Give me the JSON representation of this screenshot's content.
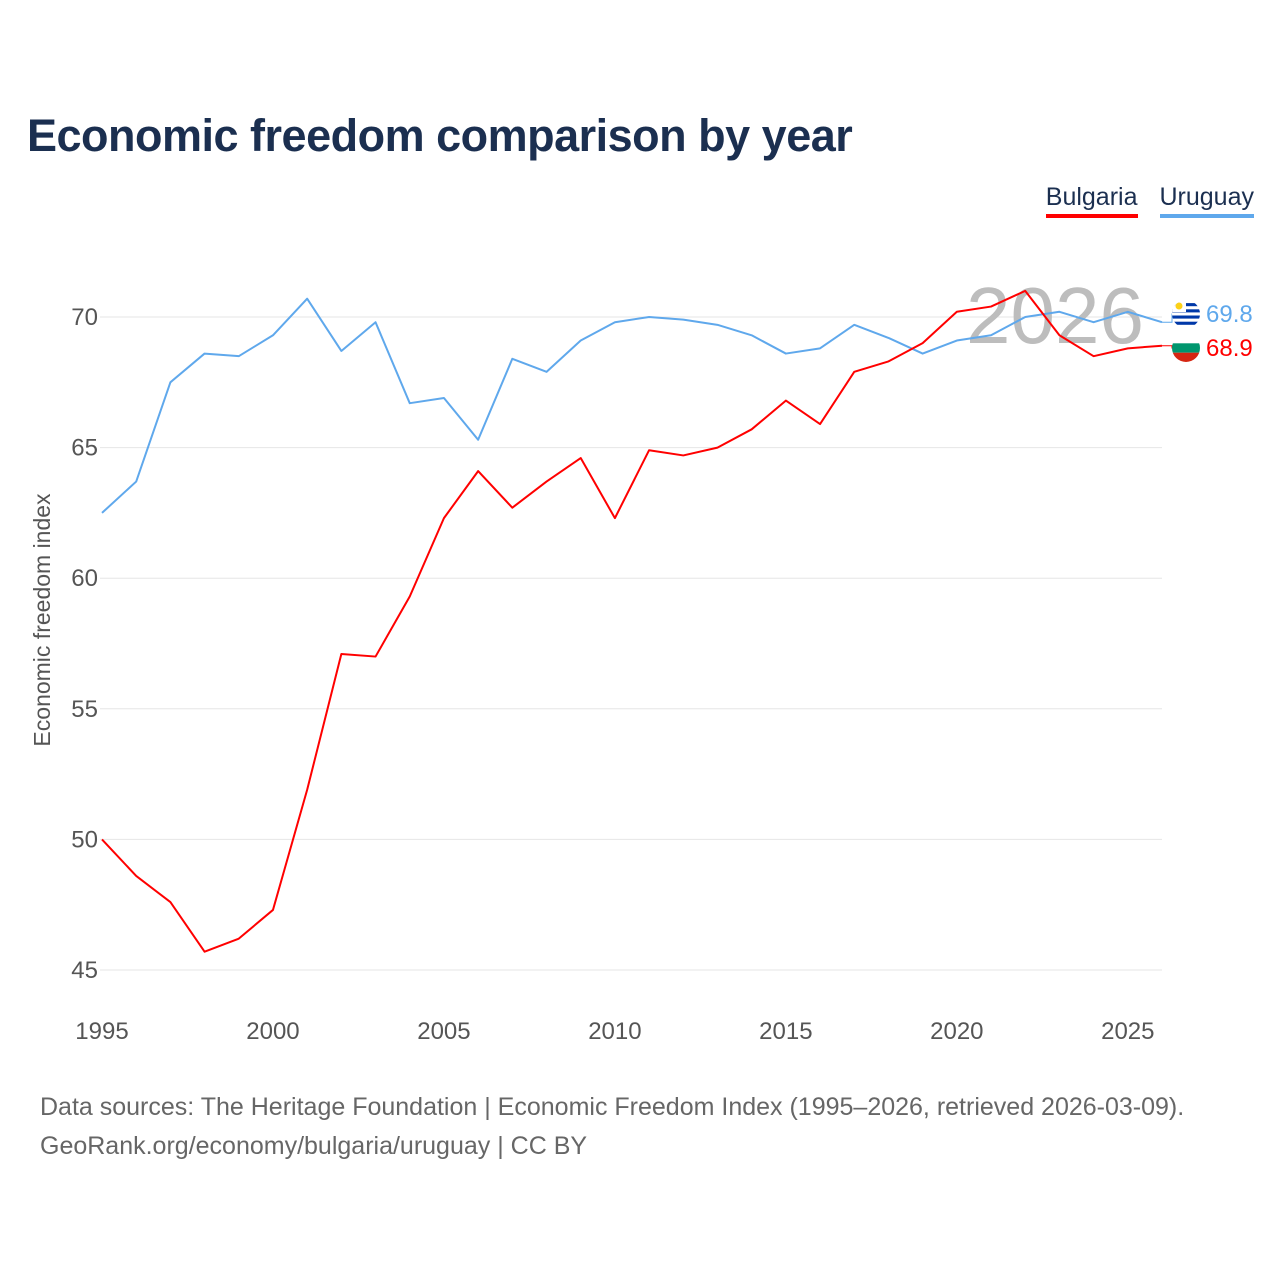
{
  "chart_data": {
    "type": "line",
    "title": "Economic freedom comparison by year",
    "xlabel": "",
    "ylabel": "Economic freedom index",
    "xlim": [
      1995,
      2026
    ],
    "ylim": [
      45,
      72
    ],
    "x_ticks": [
      1995,
      2000,
      2005,
      2010,
      2015,
      2020,
      2025
    ],
    "y_ticks": [
      45,
      50,
      55,
      60,
      65,
      70
    ],
    "grid": true,
    "legend_position": "top-right",
    "watermark_year": "2026",
    "x": [
      1995,
      1996,
      1997,
      1998,
      1999,
      2000,
      2001,
      2002,
      2003,
      2004,
      2005,
      2006,
      2007,
      2008,
      2009,
      2010,
      2011,
      2012,
      2013,
      2014,
      2015,
      2016,
      2017,
      2018,
      2019,
      2020,
      2021,
      2022,
      2023,
      2024,
      2025,
      2026
    ],
    "series": [
      {
        "name": "Bulgaria",
        "color": "#ff0000",
        "end_label": "68.9",
        "values": [
          50.0,
          48.6,
          47.6,
          45.7,
          46.2,
          47.3,
          51.9,
          57.1,
          57.0,
          59.3,
          62.3,
          64.1,
          62.7,
          63.7,
          64.6,
          62.3,
          64.9,
          64.7,
          65.0,
          65.7,
          66.8,
          65.9,
          67.9,
          68.3,
          69.0,
          70.2,
          70.4,
          71.0,
          69.3,
          68.5,
          68.8,
          68.9
        ]
      },
      {
        "name": "Uruguay",
        "color": "#5fa8ec",
        "end_label": "69.8",
        "values": [
          62.5,
          63.7,
          67.5,
          68.6,
          68.5,
          69.3,
          70.7,
          68.7,
          69.8,
          66.7,
          66.9,
          65.3,
          68.4,
          67.9,
          69.1,
          69.8,
          70.0,
          69.9,
          69.7,
          69.3,
          68.6,
          68.8,
          69.7,
          69.2,
          68.6,
          69.1,
          69.3,
          70.0,
          70.2,
          69.8,
          70.2,
          69.8
        ]
      }
    ]
  },
  "source_line1": "Data sources: The Heritage Foundation | Economic Freedom Index (1995–2026, retrieved 2026-03-09).",
  "source_line2": "GeoRank.org/economy/bulgaria/uruguay | CC BY"
}
